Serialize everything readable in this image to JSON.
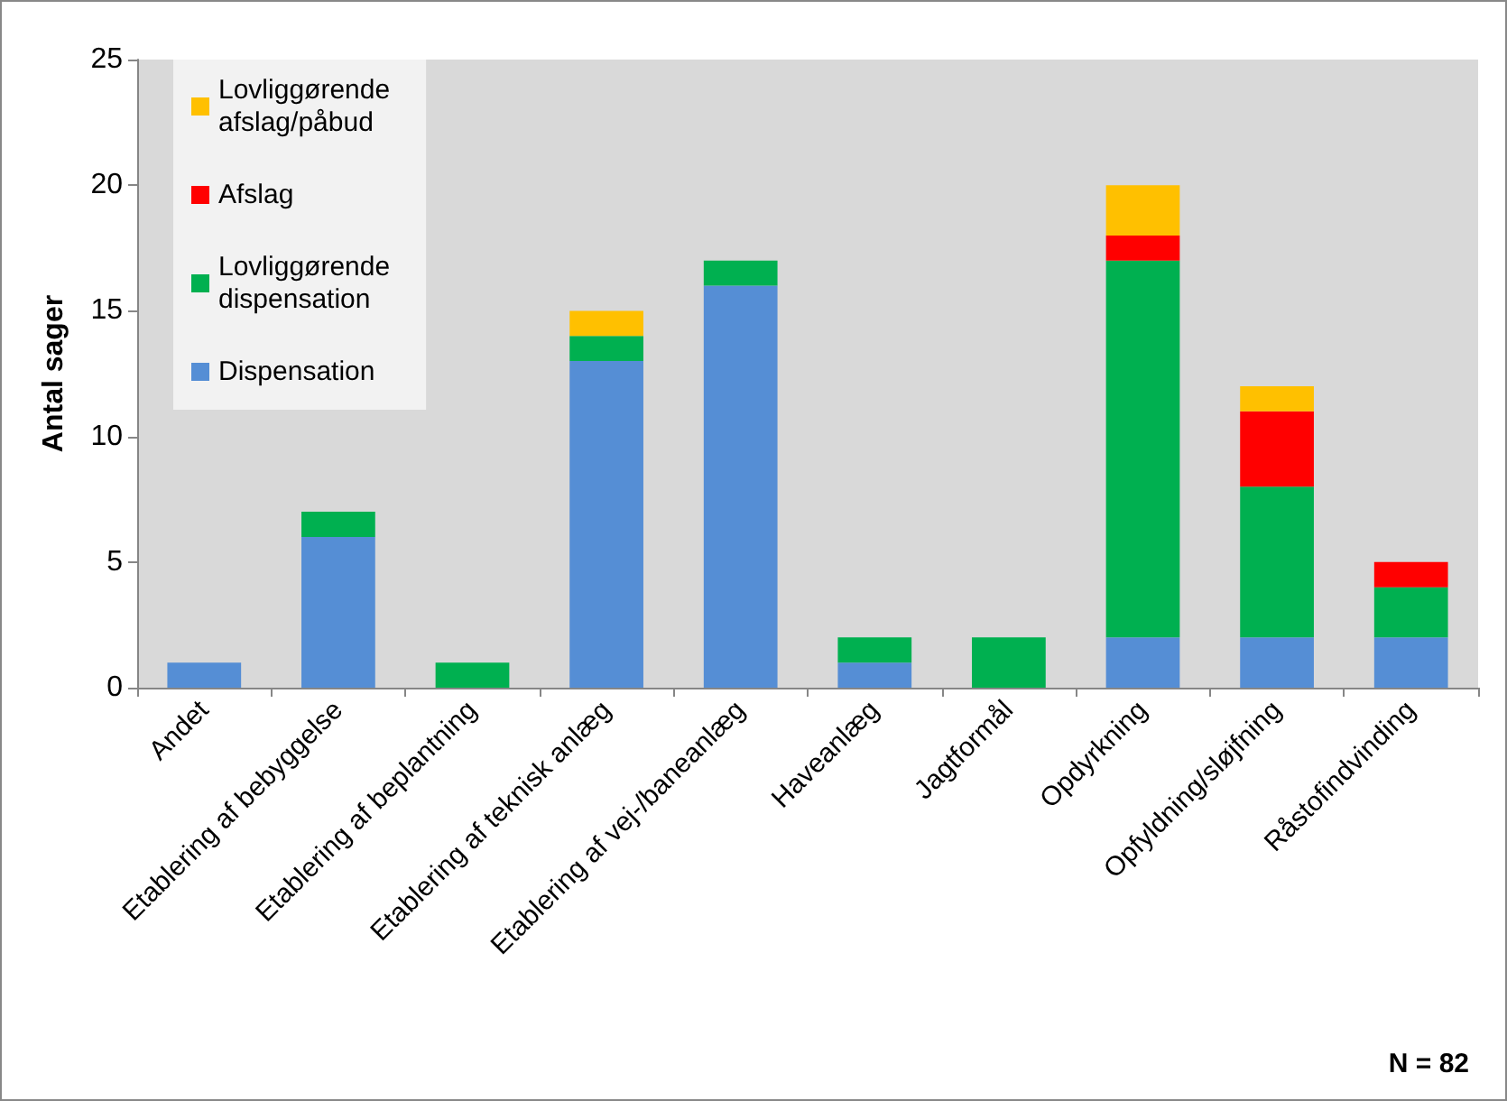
{
  "chart_data": {
    "type": "bar",
    "stacked": true,
    "ylabel": "Antal sager",
    "categories": [
      "Andet",
      "Etablering af bebyggelse",
      "Etablering af beplantning",
      "Etablering af teknisk anlæg",
      "Etablering af vej-/baneanlæg",
      "Haveanlæg",
      "Jagtformål",
      "Opdyrkning",
      "Opfyldning/sløjfning",
      "Råstofindvinding"
    ],
    "series": [
      {
        "name": "Dispensation",
        "color": "#558ed5",
        "values": [
          1,
          6,
          0,
          13,
          16,
          1,
          0,
          2,
          2,
          2
        ]
      },
      {
        "name": "Lovliggørende dispensation",
        "color": "#00b050",
        "values": [
          0,
          1,
          1,
          1,
          1,
          1,
          2,
          15,
          6,
          2
        ]
      },
      {
        "name": "Afslag",
        "color": "#ff0000",
        "values": [
          0,
          0,
          0,
          0,
          0,
          0,
          0,
          1,
          3,
          1
        ]
      },
      {
        "name": "Lovliggørende afslag/påbud",
        "color": "#ffc000",
        "values": [
          0,
          0,
          0,
          1,
          0,
          0,
          0,
          2,
          1,
          0
        ]
      }
    ],
    "ylim": [
      0,
      25
    ],
    "yticks": [
      0,
      5,
      10,
      15,
      20,
      25
    ],
    "grid": false,
    "legend": "top left",
    "annotations": [
      "N = 82"
    ]
  }
}
